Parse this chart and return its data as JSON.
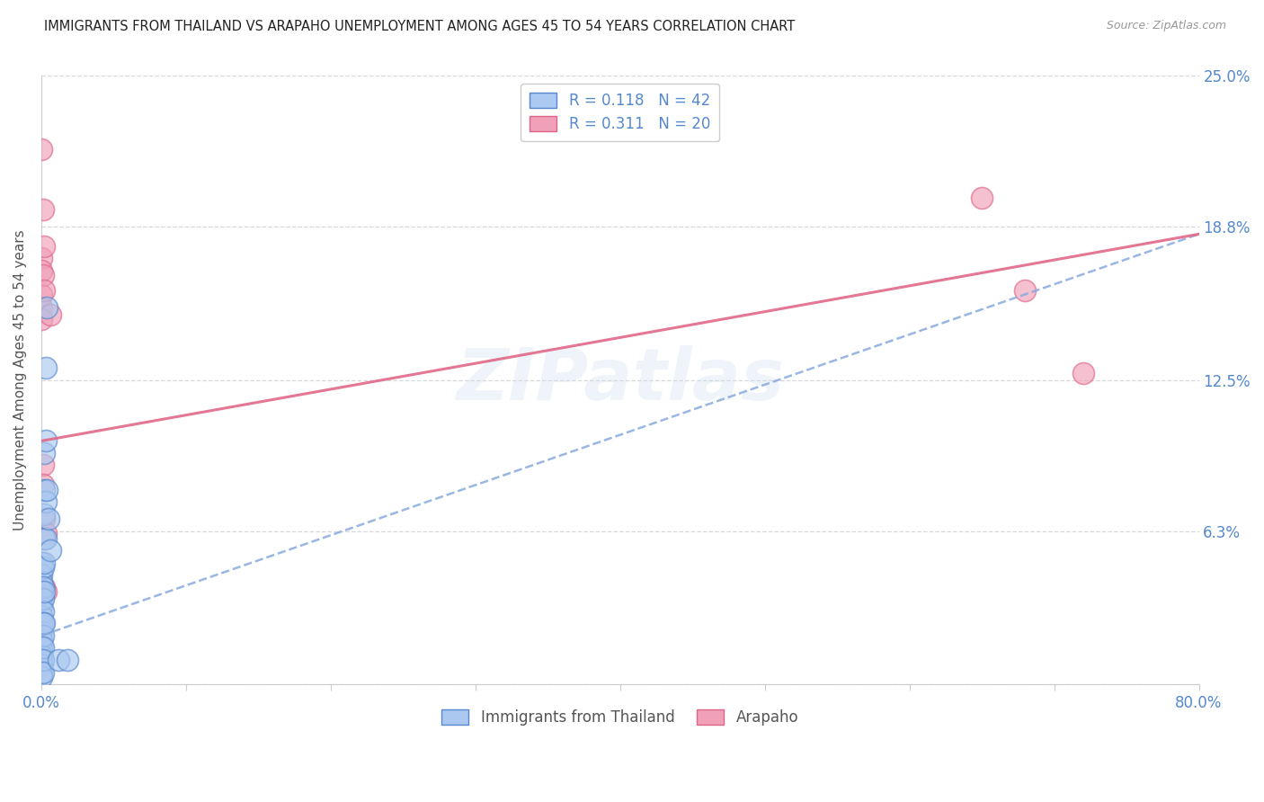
{
  "title": "IMMIGRANTS FROM THAILAND VS ARAPAHO UNEMPLOYMENT AMONG AGES 45 TO 54 YEARS CORRELATION CHART",
  "source": "Source: ZipAtlas.com",
  "ylabel": "Unemployment Among Ages 45 to 54 years",
  "xlim": [
    0.0,
    0.8
  ],
  "ylim": [
    0.0,
    0.25
  ],
  "xticks": [
    0.0,
    0.1,
    0.2,
    0.3,
    0.4,
    0.5,
    0.6,
    0.7,
    0.8
  ],
  "yticks": [
    0.0,
    0.063,
    0.125,
    0.188,
    0.25
  ],
  "ytick_labels_right": [
    "",
    "6.3%",
    "12.5%",
    "18.8%",
    "25.0%"
  ],
  "legend1_label": "Immigrants from Thailand",
  "legend2_label": "Arapaho",
  "R1": "0.118",
  "N1": "42",
  "R2": "0.311",
  "N2": "20",
  "blue_color": "#aac8f0",
  "pink_color": "#f0a0b8",
  "blue_edge": "#5588cc",
  "pink_edge": "#dd6688",
  "trend_blue_color": "#88aadd",
  "trend_pink_color": "#e06888",
  "watermark": "ZIPatlas",
  "blue_dots": [
    [
      0.0,
      0.05
    ],
    [
      0.0,
      0.045
    ],
    [
      0.0,
      0.042
    ],
    [
      0.0,
      0.038
    ],
    [
      0.0,
      0.035
    ],
    [
      0.0,
      0.032
    ],
    [
      0.0,
      0.028
    ],
    [
      0.0,
      0.025
    ],
    [
      0.0,
      0.022
    ],
    [
      0.0,
      0.018
    ],
    [
      0.0,
      0.015
    ],
    [
      0.0,
      0.012
    ],
    [
      0.0,
      0.01
    ],
    [
      0.0,
      0.008
    ],
    [
      0.0,
      0.005
    ],
    [
      0.0,
      0.003
    ],
    [
      0.001,
      0.048
    ],
    [
      0.001,
      0.04
    ],
    [
      0.001,
      0.035
    ],
    [
      0.001,
      0.03
    ],
    [
      0.001,
      0.025
    ],
    [
      0.001,
      0.02
    ],
    [
      0.001,
      0.015
    ],
    [
      0.001,
      0.01
    ],
    [
      0.001,
      0.005
    ],
    [
      0.002,
      0.095
    ],
    [
      0.002,
      0.08
    ],
    [
      0.002,
      0.07
    ],
    [
      0.002,
      0.06
    ],
    [
      0.002,
      0.05
    ],
    [
      0.002,
      0.038
    ],
    [
      0.002,
      0.025
    ],
    [
      0.003,
      0.13
    ],
    [
      0.003,
      0.1
    ],
    [
      0.003,
      0.075
    ],
    [
      0.003,
      0.06
    ],
    [
      0.004,
      0.155
    ],
    [
      0.004,
      0.08
    ],
    [
      0.005,
      0.068
    ],
    [
      0.006,
      0.055
    ],
    [
      0.012,
      0.01
    ],
    [
      0.018,
      0.01
    ]
  ],
  "pink_dots": [
    [
      0.0,
      0.22
    ],
    [
      0.0,
      0.175
    ],
    [
      0.0,
      0.17
    ],
    [
      0.0,
      0.16
    ],
    [
      0.0,
      0.155
    ],
    [
      0.0,
      0.15
    ],
    [
      0.001,
      0.195
    ],
    [
      0.001,
      0.168
    ],
    [
      0.001,
      0.09
    ],
    [
      0.001,
      0.082
    ],
    [
      0.002,
      0.18
    ],
    [
      0.002,
      0.162
    ],
    [
      0.002,
      0.068
    ],
    [
      0.002,
      0.04
    ],
    [
      0.003,
      0.062
    ],
    [
      0.003,
      0.038
    ],
    [
      0.006,
      0.152
    ],
    [
      0.65,
      0.2
    ],
    [
      0.68,
      0.162
    ],
    [
      0.72,
      0.128
    ]
  ],
  "blue_trend_x": [
    0.0,
    0.8
  ],
  "blue_trend_y": [
    0.02,
    0.185
  ],
  "pink_trend_x": [
    0.0,
    0.8
  ],
  "pink_trend_y": [
    0.1,
    0.185
  ],
  "background_color": "#ffffff",
  "grid_color": "#d8d8d8",
  "title_color": "#222222",
  "axis_label_color": "#555555",
  "tick_label_color": "#5588cc",
  "figsize": [
    14.06,
    8.92
  ],
  "dpi": 100
}
